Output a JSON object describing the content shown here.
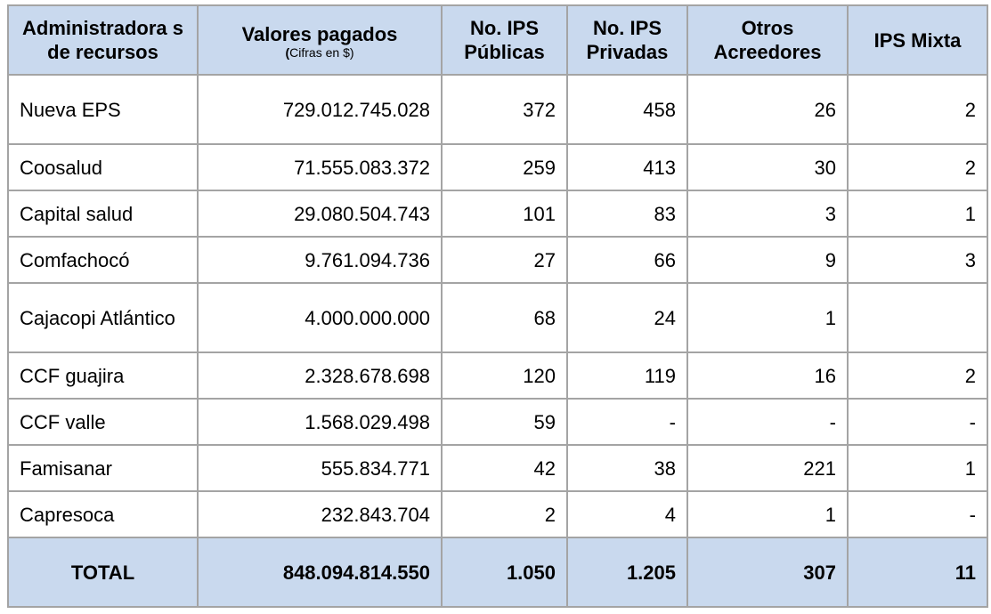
{
  "header": {
    "col1": "Administradora s de recursos",
    "col2_title": "Valores pagados",
    "col2_sub_open": "(",
    "col2_sub_text": "Cifras en $)",
    "col3": "No. IPS Públicas",
    "col4": "No. IPS Privadas",
    "col5": "Otros Acreedores",
    "col6": "IPS Mixta"
  },
  "rows": [
    {
      "name": "Nueva EPS",
      "valor": "729.012.745.028",
      "publicas": "372",
      "privadas": "458",
      "otros": "26",
      "mixta": "2"
    },
    {
      "name": "Coosalud",
      "valor": "71.555.083.372",
      "publicas": "259",
      "privadas": "413",
      "otros": "30",
      "mixta": "2"
    },
    {
      "name": "Capital salud",
      "valor": "29.080.504.743",
      "publicas": "101",
      "privadas": "83",
      "otros": "3",
      "mixta": "1"
    },
    {
      "name": "Comfachocó",
      "valor": "9.761.094.736",
      "publicas": "27",
      "privadas": "66",
      "otros": "9",
      "mixta": "3"
    },
    {
      "name": "Cajacopi Atlántico",
      "valor": "4.000.000.000",
      "publicas": "68",
      "privadas": "24",
      "otros": "1",
      "mixta": ""
    },
    {
      "name": "CCF guajira",
      "valor": "2.328.678.698",
      "publicas": "120",
      "privadas": "119",
      "otros": "16",
      "mixta": "2"
    },
    {
      "name": "CCF valle",
      "valor": "1.568.029.498",
      "publicas": "59",
      "privadas": "-",
      "otros": "-",
      "mixta": "-"
    },
    {
      "name": "Famisanar",
      "valor": "555.834.771",
      "publicas": "42",
      "privadas": "38",
      "otros": "221",
      "mixta": "1"
    },
    {
      "name": "Capresoca",
      "valor": "232.843.704",
      "publicas": "2",
      "privadas": "4",
      "otros": "1",
      "mixta": "-"
    }
  ],
  "total": {
    "label": "TOTAL",
    "valor": "848.094.814.550",
    "publicas": "1.050",
    "privadas": "1.205",
    "otros": "307",
    "mixta": "11"
  }
}
